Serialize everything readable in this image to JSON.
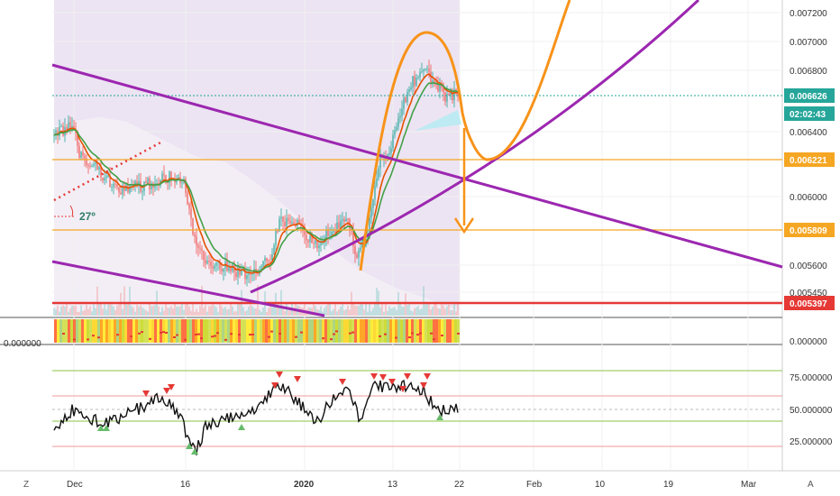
{
  "chart_data": {
    "type": "line",
    "price_axis": {
      "ticks": [
        "0.007200",
        "0.007000",
        "0.006800",
        "0.006400",
        "0.006000",
        "0.005600",
        "0.005450"
      ],
      "badges": [
        {
          "label": "0.006626",
          "color": "#26a69a"
        },
        {
          "label": "02:02:43",
          "color": "#26a69a"
        },
        {
          "label": "0.006221",
          "color": "#f5a623"
        },
        {
          "label": "0.005809",
          "color": "#f5a623"
        },
        {
          "label": "0.005397",
          "color": "#e53935"
        }
      ]
    },
    "volume_axis": {
      "left_label": "0.000000",
      "right_label": "0.000000"
    },
    "oscillator_axis": {
      "ticks": [
        "75.000000",
        "50.000000",
        "25.000000"
      ]
    },
    "time_axis": {
      "labels": [
        "Dec",
        "16",
        "2020",
        "13",
        "22",
        "Feb",
        "10",
        "19",
        "Mar"
      ]
    },
    "annotations": {
      "angle": "27º"
    },
    "corner_labels": {
      "left": "Z",
      "right": "A"
    },
    "colors": {
      "trendline": "#9c27b0",
      "projection": "#f7931a",
      "resistance": "#f5a623",
      "support": "#e53935",
      "price_line": "#26a69a",
      "cloud": "#e9dff0"
    }
  }
}
